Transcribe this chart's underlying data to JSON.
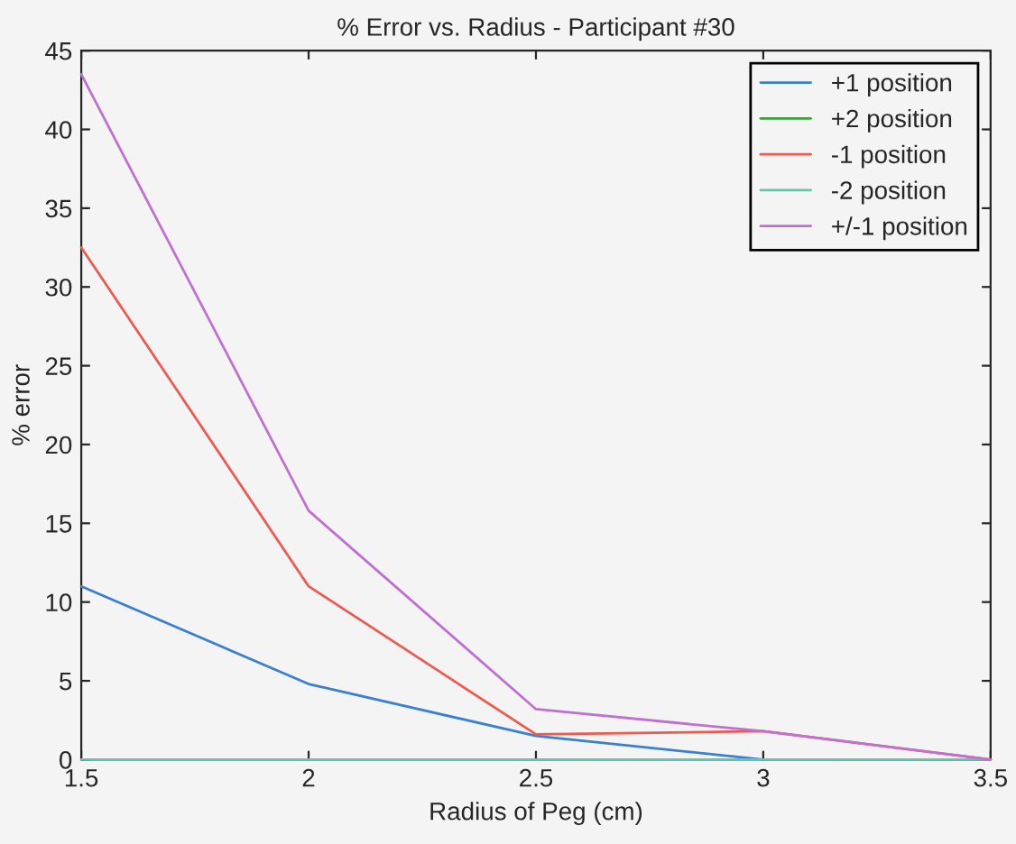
{
  "chart_data": {
    "type": "line",
    "title": "% Error vs. Radius - Participant #30",
    "xlabel": "Radius of Peg (cm)",
    "ylabel": "% error",
    "x": [
      1.5,
      2,
      2.5,
      3,
      3.5
    ],
    "series": [
      {
        "name": "+1 position",
        "color": "#3a7fd0",
        "values": [
          11,
          4.8,
          1.5,
          0,
          0
        ]
      },
      {
        "name": "+2 position",
        "color": "#3aa040",
        "values": [
          null,
          null,
          null,
          null,
          null
        ]
      },
      {
        "name": "-1 position",
        "color": "#ee5a50",
        "values": [
          32.5,
          11,
          1.6,
          1.8,
          0
        ]
      },
      {
        "name": "-2 position",
        "color": "#60c8b0",
        "values": [
          0,
          0,
          0,
          0,
          0
        ]
      },
      {
        "name": "+/-1 position",
        "color": "#c070d0",
        "values": [
          43.5,
          15.8,
          3.2,
          1.8,
          0
        ]
      }
    ],
    "xlim": [
      1.5,
      3.5
    ],
    "xticks": [
      1.5,
      2,
      2.5,
      3,
      3.5
    ],
    "ylim": [
      0,
      45
    ],
    "yticks": [
      0,
      5,
      10,
      15,
      20,
      25,
      30,
      35,
      40,
      45
    ],
    "legend": "top right",
    "grid": false,
    "marker": "none",
    "line_style": "solid"
  }
}
